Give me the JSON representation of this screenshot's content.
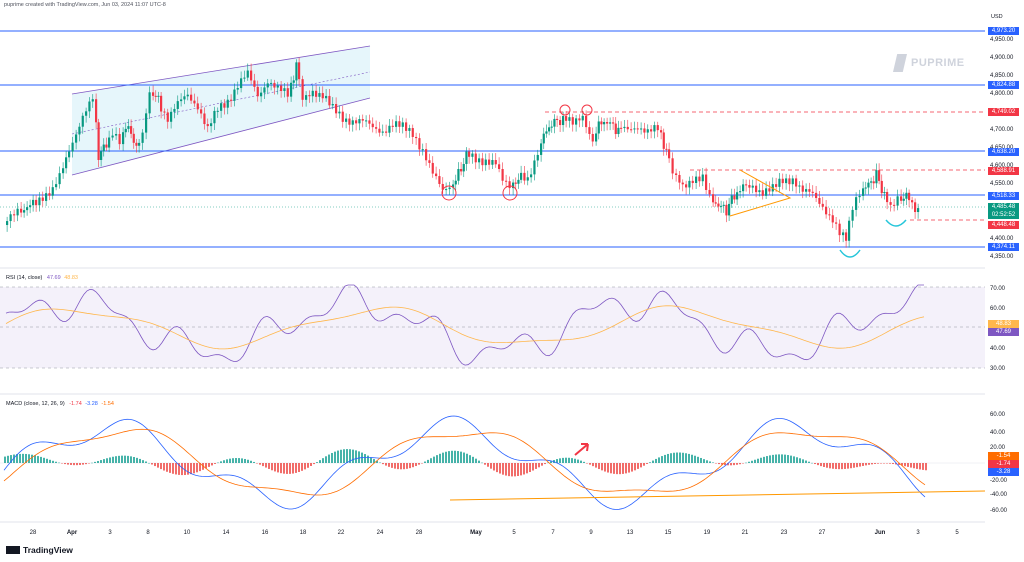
{
  "header": {
    "text": "puprime created with TradingView.com, Jun 03, 2024 11:07 UTC-8"
  },
  "currency": "USD",
  "watermark": "PUPRIME",
  "footer": {
    "brand": "TradingView"
  },
  "price_axis": {
    "ticks": [
      "4,950.00",
      "4,900.00",
      "4,850.00",
      "4,800.00",
      "4,700.00",
      "4,650.00",
      "4,600.00",
      "4,550.00",
      "4,400.00",
      "4,350.00"
    ],
    "badges": [
      {
        "label": "4,973.20",
        "color": "#2962ff"
      },
      {
        "label": "4,824.88",
        "color": "#2962ff"
      },
      {
        "label": "4,749.02",
        "color": "#f23645"
      },
      {
        "label": "4,638.20",
        "color": "#2962ff"
      },
      {
        "label": "4,588.91",
        "color": "#f23645"
      },
      {
        "label": "4,518.33",
        "color": "#2962ff"
      },
      {
        "label": "4,485.48",
        "color": "#089981"
      },
      {
        "label": "02:52:52",
        "color": "#089981"
      },
      {
        "label": "4,448.48",
        "color": "#f23645"
      },
      {
        "label": "4,374.11",
        "color": "#2962ff"
      }
    ]
  },
  "rsi": {
    "title": "RSI (14, close)",
    "value1": "47.69",
    "value2": "48.83",
    "ticks": [
      "70.00",
      "60.00",
      "40.00",
      "30.00"
    ],
    "badges": [
      {
        "label": "48.83",
        "color": "#ffb74d"
      },
      {
        "label": "47.69",
        "color": "#7e57c2"
      }
    ]
  },
  "macd": {
    "title": "MACD (close, 12, 26, 9)",
    "v1": "-1.74",
    "v2": "-3.28",
    "v3": "-1.54",
    "ticks": [
      "60.00",
      "40.00",
      "20.00",
      "-20.00",
      "-40.00",
      "-60.00"
    ],
    "badges": [
      {
        "label": "-1.54",
        "color": "#ff6d00"
      },
      {
        "label": "-1.74",
        "color": "#f23645"
      },
      {
        "label": "-3.28",
        "color": "#2962ff"
      }
    ]
  },
  "dates": [
    "28",
    "Apr",
    "3",
    "8",
    "10",
    "14",
    "16",
    "18",
    "22",
    "24",
    "28",
    "May",
    "5",
    "7",
    "9",
    "13",
    "15",
    "19",
    "21",
    "23",
    "27",
    "Jun",
    "3",
    "5"
  ],
  "colors": {
    "up": "#089981",
    "down": "#f23645",
    "level": "#2962ff",
    "resistance": "#f23645",
    "channel": "#7e57c2",
    "rsi": "#7e57c2",
    "signal": "#ff9800",
    "trend": "#ff9800"
  }
}
